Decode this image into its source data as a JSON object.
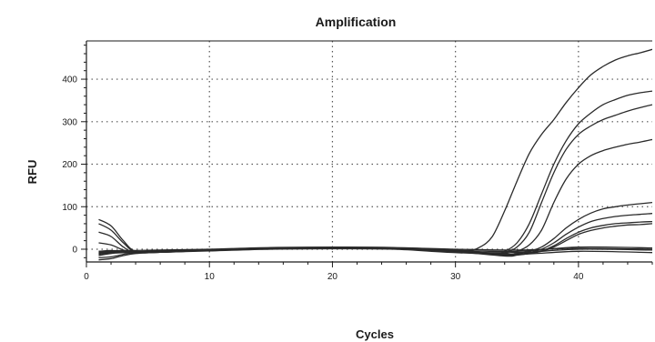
{
  "chart_data": {
    "type": "line",
    "title": "Amplification",
    "xlabel": "Cycles",
    "ylabel": "RFU",
    "xlim": [
      0,
      46
    ],
    "ylim": [
      -30,
      490
    ],
    "xticks": [
      0,
      10,
      20,
      30,
      40
    ],
    "yticks": [
      0,
      100,
      200,
      300,
      400
    ],
    "grid": "dotted",
    "legend": "none",
    "line_color": "#2a2a2a",
    "grid_color": "#555555",
    "series": [
      {
        "x": [
          1,
          2,
          3,
          4,
          6,
          10,
          15,
          20,
          25,
          29,
          31,
          32,
          33,
          34,
          35,
          36,
          37,
          38,
          39,
          40,
          41,
          42,
          43,
          44,
          45,
          46
        ],
        "y": [
          -5,
          -3,
          -5,
          -6,
          -4,
          -2,
          2,
          3,
          2,
          0,
          -3,
          5,
          30,
          90,
          160,
          225,
          270,
          305,
          345,
          380,
          410,
          430,
          445,
          455,
          462,
          470
        ]
      },
      {
        "x": [
          1,
          2,
          3,
          4,
          6,
          10,
          15,
          20,
          25,
          30,
          33,
          34,
          35,
          36,
          37,
          38,
          39,
          40,
          41,
          42,
          43,
          44,
          45,
          46
        ],
        "y": [
          -8,
          -5,
          -6,
          -6,
          -4,
          -1,
          3,
          4,
          2,
          -2,
          -10,
          -5,
          15,
          60,
          130,
          200,
          255,
          295,
          320,
          340,
          352,
          362,
          368,
          372
        ]
      },
      {
        "x": [
          1,
          2,
          3,
          4,
          6,
          10,
          15,
          20,
          25,
          30,
          33,
          34,
          35,
          36,
          37,
          38,
          39,
          40,
          41,
          42,
          43,
          44,
          45,
          46
        ],
        "y": [
          -10,
          -6,
          -7,
          -6,
          -5,
          -2,
          2,
          3,
          2,
          -3,
          -12,
          -8,
          5,
          40,
          110,
          180,
          235,
          270,
          290,
          305,
          315,
          325,
          333,
          340
        ]
      },
      {
        "x": [
          1,
          2,
          3,
          4,
          6,
          10,
          15,
          20,
          25,
          30,
          33,
          34,
          35,
          36,
          37,
          38,
          39,
          40,
          41,
          42,
          43,
          44,
          45,
          46
        ],
        "y": [
          -12,
          -8,
          -8,
          -7,
          -5,
          -3,
          1,
          2,
          1,
          -4,
          -12,
          -10,
          -5,
          10,
          45,
          110,
          165,
          200,
          220,
          232,
          240,
          247,
          252,
          258
        ]
      },
      {
        "x": [
          1,
          2,
          3,
          4,
          6,
          10,
          15,
          20,
          25,
          30,
          34,
          35,
          36,
          37,
          38,
          39,
          40,
          41,
          42,
          43,
          44,
          45,
          46
        ],
        "y": [
          70,
          55,
          20,
          -5,
          -6,
          -3,
          1,
          2,
          1,
          -4,
          -12,
          -10,
          -5,
          5,
          25,
          50,
          70,
          85,
          95,
          100,
          104,
          107,
          110
        ]
      },
      {
        "x": [
          1,
          2,
          3,
          4,
          6,
          10,
          15,
          20,
          25,
          30,
          34,
          35,
          36,
          37,
          38,
          39,
          40,
          41,
          42,
          43,
          44,
          45,
          46
        ],
        "y": [
          60,
          45,
          15,
          -6,
          -7,
          -3,
          1,
          2,
          1,
          -5,
          -14,
          -12,
          -8,
          0,
          15,
          35,
          52,
          65,
          72,
          77,
          80,
          82,
          84
        ]
      },
      {
        "x": [
          1,
          2,
          3,
          4,
          6,
          10,
          15,
          20,
          25,
          30,
          34,
          35,
          36,
          37,
          38,
          39,
          40,
          41,
          42,
          43,
          44,
          45,
          46
        ],
        "y": [
          40,
          30,
          5,
          -8,
          -7,
          -3,
          1,
          2,
          1,
          -5,
          -15,
          -13,
          -10,
          -4,
          8,
          25,
          40,
          50,
          56,
          60,
          62,
          64,
          65
        ]
      },
      {
        "x": [
          1,
          2,
          3,
          4,
          6,
          10,
          15,
          20,
          25,
          30,
          34,
          35,
          36,
          37,
          38,
          39,
          40,
          41,
          42,
          43,
          44,
          45,
          46
        ],
        "y": [
          15,
          10,
          -2,
          -8,
          -7,
          -3,
          1,
          2,
          1,
          -6,
          -16,
          -14,
          -10,
          -5,
          5,
          20,
          35,
          44,
          50,
          54,
          57,
          58,
          60
        ]
      },
      {
        "x": [
          1,
          2,
          3,
          4,
          6,
          10,
          15,
          20,
          25,
          30,
          35,
          40,
          46
        ],
        "y": [
          -15,
          -10,
          -8,
          -7,
          -5,
          -2,
          2,
          3,
          2,
          -3,
          -5,
          5,
          3
        ]
      },
      {
        "x": [
          1,
          2,
          3,
          4,
          6,
          10,
          15,
          20,
          25,
          30,
          35,
          40,
          46
        ],
        "y": [
          -20,
          -18,
          -12,
          -8,
          -6,
          -3,
          1,
          2,
          1,
          -6,
          -8,
          0,
          -2
        ]
      },
      {
        "x": [
          1,
          2,
          3,
          4,
          6,
          10,
          15,
          20,
          25,
          30,
          35,
          40,
          46
        ],
        "y": [
          -25,
          -22,
          -15,
          -10,
          -7,
          -4,
          0,
          1,
          0,
          -8,
          -12,
          -5,
          -8
        ]
      },
      {
        "x": [
          1,
          2,
          3,
          4,
          6,
          10,
          15,
          20,
          25,
          30,
          35,
          40,
          46
        ],
        "y": [
          -5,
          -4,
          -3,
          -3,
          -2,
          0,
          4,
          5,
          4,
          0,
          -2,
          2,
          0
        ]
      }
    ]
  }
}
